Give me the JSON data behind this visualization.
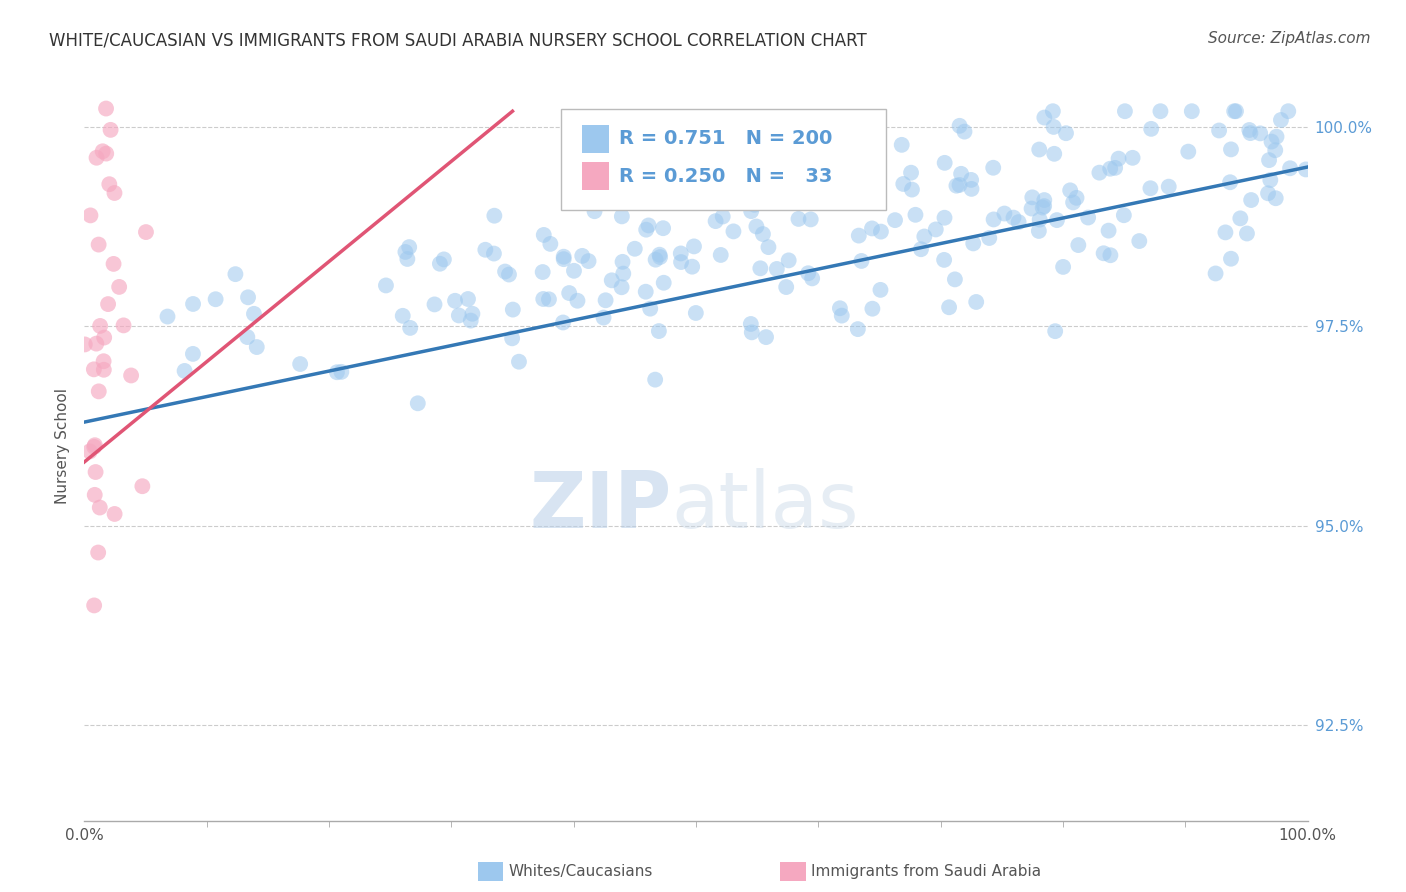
{
  "title": "WHITE/CAUCASIAN VS IMMIGRANTS FROM SAUDI ARABIA NURSERY SCHOOL CORRELATION CHART",
  "source": "Source: ZipAtlas.com",
  "ylabel": "Nursery School",
  "xlabel": "",
  "xlim": [
    0,
    1
  ],
  "ylim": [
    0.913,
    1.007
  ],
  "yticks": [
    0.925,
    0.95,
    0.975,
    1.0
  ],
  "ytick_labels": [
    "92.5%",
    "95.0%",
    "97.5%",
    "100.0%"
  ],
  "xtick_labels": [
    "0.0%",
    "100.0%"
  ],
  "blue_R": 0.751,
  "blue_N": 200,
  "pink_R": 0.25,
  "pink_N": 33,
  "blue_color": "#9DC8EE",
  "pink_color": "#F5A8C0",
  "blue_line_color": "#3478B5",
  "pink_line_color": "#E05575",
  "legend_label_blue": "Whites/Caucasians",
  "legend_label_pink": "Immigrants from Saudi Arabia",
  "watermark_zip": "ZIP",
  "watermark_atlas": "atlas",
  "background_color": "#FFFFFF",
  "title_fontsize": 12,
  "source_fontsize": 11,
  "axis_label_fontsize": 11,
  "tick_color": "#5B9BD5",
  "tick_fontsize": 11,
  "legend_fontsize": 14,
  "blue_trend_x0": 0.0,
  "blue_trend_y0": 0.963,
  "blue_trend_x1": 1.0,
  "blue_trend_y1": 0.995,
  "pink_trend_x0": 0.0,
  "pink_trend_y0": 0.958,
  "pink_trend_x1": 0.35,
  "pink_trend_y1": 1.002
}
